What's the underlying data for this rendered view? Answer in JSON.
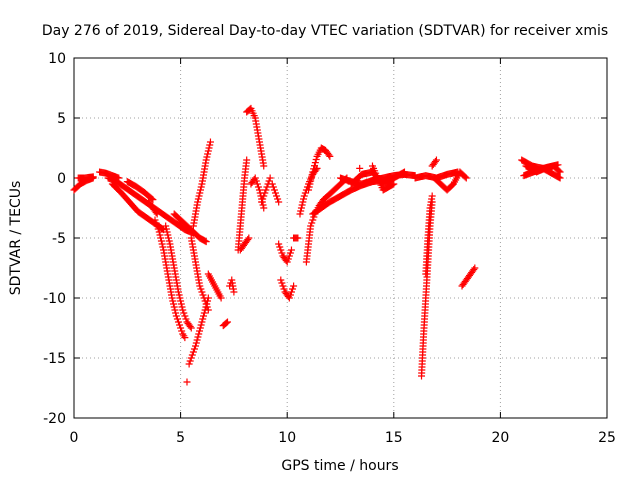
{
  "chart_data": {
    "type": "scatter",
    "title": "Day 276 of 2019, Sidereal Day-to-day VTEC variation (SDTVAR) for receiver xmis",
    "xlabel": "GPS time / hours",
    "ylabel": "SDTVAR / TECUs",
    "xlim": [
      0,
      25
    ],
    "ylim": [
      -20,
      10
    ],
    "xticks": [
      0,
      5,
      10,
      15,
      20,
      25
    ],
    "yticks": [
      -20,
      -15,
      -10,
      -5,
      0,
      5,
      10
    ],
    "xtick_labels": [
      "0",
      "5",
      "10",
      "15",
      "20",
      "25"
    ],
    "ytick_labels": [
      "-20",
      "-15",
      "-10",
      "-5",
      "0",
      "5",
      "10"
    ],
    "grid": true,
    "marker": "+",
    "color": "#ff0000",
    "series": [
      {
        "name": "SDTVAR",
        "segments": [
          {
            "x": [
              0,
              0.3,
              0.6,
              0.9
            ],
            "y": [
              -1,
              -0.5,
              -0.2,
              0
            ]
          },
          {
            "x": [
              0.2,
              0.5,
              0.9
            ],
            "y": [
              0,
              0,
              0.1
            ]
          },
          {
            "x": [
              1.2,
              1.5,
              1.8,
              2.1
            ],
            "y": [
              0.5,
              0.4,
              0.2,
              0
            ]
          },
          {
            "x": [
              1.6,
              2,
              2.4,
              2.8,
              3.2,
              3.6,
              4,
              4.4,
              4.8,
              5.2,
              5.6
            ],
            "y": [
              0,
              -0.3,
              -0.8,
              -1.3,
              -1.8,
              -2.3,
              -2.8,
              -3.3,
              -3.8,
              -4.3,
              -4.6
            ]
          },
          {
            "x": [
              1.8,
              2.2,
              2.6,
              3,
              3.4,
              3.8,
              4.2
            ],
            "y": [
              -0.5,
              -1.2,
              -2,
              -2.8,
              -3.3,
              -3.8,
              -4.3
            ]
          },
          {
            "x": [
              2.5,
              2.9,
              3.3,
              3.7
            ],
            "y": [
              -0.3,
              -0.7,
              -1.2,
              -1.8
            ]
          },
          {
            "x": [
              3.5,
              3.7,
              3.9
            ],
            "y": [
              -2,
              -2.5,
              -3
            ]
          },
          {
            "x": [
              3.8,
              4,
              4.2,
              4.4,
              4.6,
              4.8,
              5,
              5.1,
              5.2
            ],
            "y": [
              -3.5,
              -4.5,
              -6,
              -8,
              -10,
              -11.5,
              -12.5,
              -13,
              -13.3
            ]
          },
          {
            "x": [
              4.3,
              4.5,
              4.7,
              4.9,
              5.1,
              5.3,
              5.5
            ],
            "y": [
              -4,
              -5.5,
              -7.5,
              -9.5,
              -11,
              -12,
              -12.5
            ]
          },
          {
            "x": [
              4.7,
              5,
              5.3,
              5.6,
              5.9,
              6.2
            ],
            "y": [
              -3,
              -3.5,
              -4,
              -4.5,
              -5,
              -5.3
            ]
          },
          {
            "x": [
              5.4,
              5.7,
              6,
              6.3
            ],
            "y": [
              -15.5,
              -14,
              -12,
              -10
            ]
          },
          {
            "x": [
              5.3
            ],
            "y": [
              -17
            ]
          },
          {
            "x": [
              5.5,
              5.7,
              5.9,
              6.1,
              6.3
            ],
            "y": [
              -5,
              -7,
              -9,
              -10,
              -11
            ]
          },
          {
            "x": [
              5.6,
              5.8,
              6,
              6.2,
              6.4
            ],
            "y": [
              -4,
              -2,
              -0.5,
              1.5,
              3
            ]
          },
          {
            "x": [
              6.3,
              6.6,
              6.9
            ],
            "y": [
              -8,
              -9,
              -10
            ]
          },
          {
            "x": [
              7,
              7.2
            ],
            "y": [
              -12.3,
              -12
            ]
          },
          {
            "x": [
              7.3,
              7.4,
              7.5
            ],
            "y": [
              -9,
              -8.5,
              -9.5
            ]
          },
          {
            "x": [
              7.7,
              7.8,
              7.9,
              8,
              8.1
            ],
            "y": [
              -6,
              -4,
              -2,
              0,
              1.5
            ]
          },
          {
            "x": [
              7.8,
              8,
              8.2
            ],
            "y": [
              -6,
              -5.5,
              -5
            ]
          },
          {
            "x": [
              8.1,
              8.3,
              8.5,
              8.7,
              8.9
            ],
            "y": [
              5.5,
              5.8,
              5,
              3,
              1
            ]
          },
          {
            "x": [
              8.3,
              8.5,
              8.7,
              8.9
            ],
            "y": [
              -0.5,
              0,
              -1,
              -2.5
            ]
          },
          {
            "x": [
              8.8,
              9,
              9.2
            ],
            "y": [
              -2,
              -1,
              0
            ]
          },
          {
            "x": [
              9.3,
              9.6
            ],
            "y": [
              -0.5,
              -2
            ]
          },
          {
            "x": [
              9.6,
              9.8,
              10,
              10.2
            ],
            "y": [
              -5.5,
              -6.5,
              -7,
              -6
            ]
          },
          {
            "x": [
              9.7,
              9.9,
              10.1,
              10.3
            ],
            "y": [
              -8.5,
              -9.5,
              -10,
              -9
            ]
          },
          {
            "x": [
              10.3,
              10.5
            ],
            "y": [
              -5,
              -5
            ]
          },
          {
            "x": [
              10.6,
              10.8,
              11,
              11.2,
              11.4
            ],
            "y": [
              -3,
              -1.5,
              -0.5,
              0.3,
              0.8
            ]
          },
          {
            "x": [
              10.9,
              11,
              11.1,
              11.3,
              11.5,
              11.7,
              11.9,
              12.2,
              12.5,
              12.8
            ],
            "y": [
              -7,
              -5.5,
              -4,
              -3,
              -2.3,
              -1.8,
              -1.5,
              -1,
              -0.5,
              0
            ]
          },
          {
            "x": [
              11,
              11.2,
              11.4,
              11.6,
              11.8,
              12
            ],
            "y": [
              -1,
              0.5,
              1.8,
              2.5,
              2.3,
              1.8
            ]
          },
          {
            "x": [
              11.2,
              11.6,
              12,
              12.5,
              13,
              13.5,
              14,
              14.5,
              15
            ],
            "y": [
              -3,
              -2.5,
              -2,
              -1.5,
              -1,
              -0.6,
              -0.3,
              -0.2,
              0
            ]
          },
          {
            "x": [
              12.5,
              13,
              13.5,
              14,
              14.5,
              15,
              15.5,
              16
            ],
            "y": [
              0,
              -0.3,
              -0.5,
              -0.2,
              0,
              0.2,
              0.3,
              0.2
            ]
          },
          {
            "x": [
              13,
              13.5,
              14,
              14.5,
              15,
              15.5
            ],
            "y": [
              -0.5,
              0.3,
              0.5,
              -0.5,
              0,
              0.5
            ]
          },
          {
            "x": [
              13.4
            ],
            "y": [
              0.8
            ]
          },
          {
            "x": [
              14,
              14.5,
              15
            ],
            "y": [
              1,
              -1,
              -0.5
            ]
          },
          {
            "x": [
              16,
              16.5,
              17,
              17.5,
              18
            ],
            "y": [
              0,
              0.2,
              0,
              0.3,
              0.5
            ]
          },
          {
            "x": [
              16.3,
              16.4,
              16.5,
              16.6,
              16.7,
              16.8
            ],
            "y": [
              -16.5,
              -13,
              -10,
              -7,
              -4,
              -2
            ]
          },
          {
            "x": [
              16.5,
              16.6,
              16.7,
              16.8
            ],
            "y": [
              -8,
              -5,
              -2.5,
              -1.5
            ]
          },
          {
            "x": [
              16.9,
              17.2,
              17.5,
              17.8,
              18.1,
              18.4
            ],
            "y": [
              0,
              -0.5,
              -1,
              -0.5,
              0.5,
              0
            ]
          },
          {
            "x": [
              16.8,
              17
            ],
            "y": [
              1,
              1.5
            ]
          },
          {
            "x": [
              18.2,
              18.4,
              18.6,
              18.8
            ],
            "y": [
              -9,
              -8.5,
              -8,
              -7.5
            ]
          },
          {
            "x": [
              21,
              21.5,
              22,
              22.5,
              22.8
            ],
            "y": [
              1.5,
              1,
              0.8,
              1,
              0.5
            ]
          },
          {
            "x": [
              21.2,
              21.7,
              22.2,
              22.7
            ],
            "y": [
              1,
              0.5,
              0.9,
              1.1
            ]
          },
          {
            "x": [
              21.1,
              22,
              22.8
            ],
            "y": [
              0.2,
              0.8,
              0
            ]
          }
        ]
      }
    ]
  }
}
